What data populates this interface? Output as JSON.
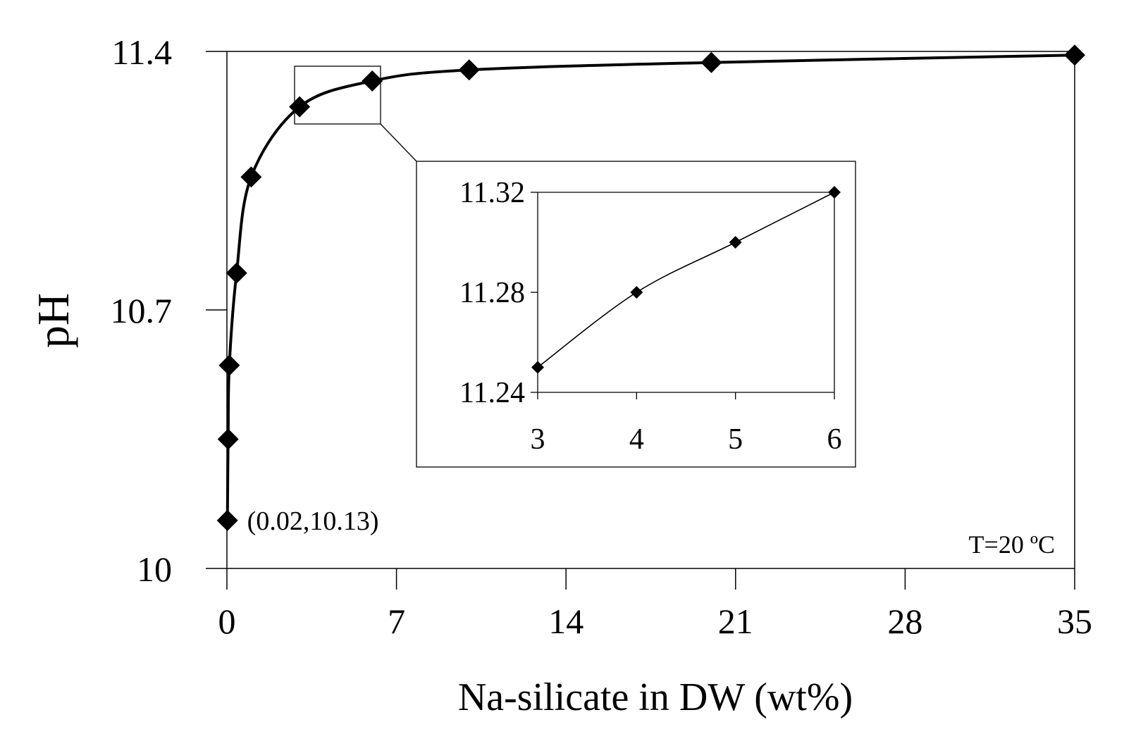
{
  "chart_data": [
    {
      "type": "line",
      "xlabel": "Na-silicate in DW (wt%)",
      "ylabel": "pH",
      "xlim": [
        0,
        35
      ],
      "ylim": [
        10,
        11.4
      ],
      "x_ticks": [
        0,
        7,
        14,
        21,
        28,
        35
      ],
      "y_ticks": [
        10,
        10.7,
        11.4
      ],
      "grid": false,
      "series": [
        {
          "x": [
            0.02,
            0.05,
            0.1,
            0.4,
            1.0,
            3.0,
            6.0,
            10.0,
            20.0,
            35.0
          ],
          "y": [
            10.13,
            10.35,
            10.55,
            10.8,
            11.06,
            11.25,
            11.32,
            11.35,
            11.37,
            11.39
          ]
        }
      ],
      "annotations": [
        {
          "text": "(0.02,10.13)",
          "x": 0.02,
          "y": 10.13
        },
        {
          "text": "T=20 ºC",
          "position": "bottom-right"
        }
      ],
      "zoom_box": {
        "x": [
          3,
          6
        ],
        "y": [
          11.24,
          11.32
        ]
      }
    },
    {
      "type": "line",
      "xlim": [
        3,
        6
      ],
      "ylim": [
        11.24,
        11.32
      ],
      "x_ticks": [
        3,
        4,
        5,
        6
      ],
      "y_ticks": [
        11.24,
        11.28,
        11.32
      ],
      "grid": false,
      "series": [
        {
          "x": [
            3,
            4,
            5,
            6
          ],
          "y": [
            11.25,
            11.28,
            11.3,
            11.32
          ]
        }
      ]
    }
  ]
}
